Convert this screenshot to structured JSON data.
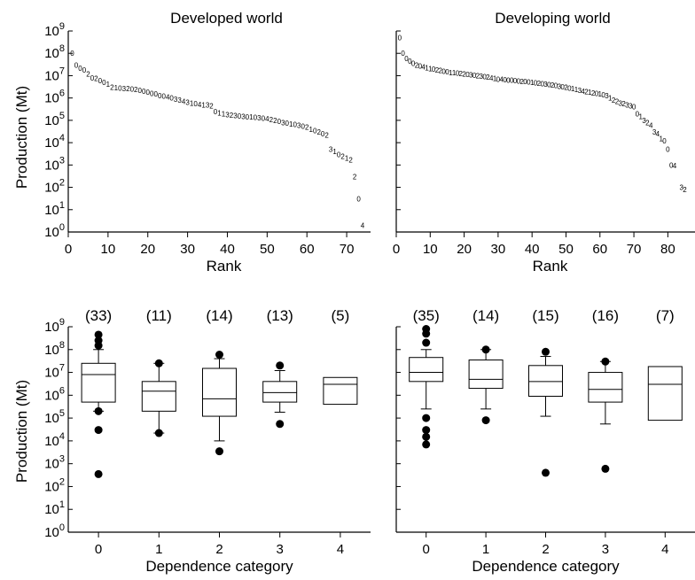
{
  "figure": {
    "ylabel": "Production (Mt)"
  },
  "chart_data": [
    {
      "type": "scatter",
      "title": "Developed world",
      "xlabel": "Rank",
      "ylabel": "Production (Mt)",
      "yscale": "log",
      "ylim": [
        1,
        1000000000
      ],
      "xlim": [
        0,
        76
      ],
      "xticks": [
        0,
        10,
        20,
        30,
        40,
        50,
        60,
        70
      ],
      "marker": "dependence category digit",
      "points": [
        {
          "x": 1,
          "y": 100000000,
          "label": "0"
        },
        {
          "x": 2,
          "y": 30000000,
          "label": "0"
        },
        {
          "x": 3,
          "y": 22000000,
          "label": "0"
        },
        {
          "x": 4,
          "y": 18000000,
          "label": "0"
        },
        {
          "x": 5,
          "y": 12000000,
          "label": "2"
        },
        {
          "x": 6,
          "y": 8000000,
          "label": "0"
        },
        {
          "x": 7,
          "y": 7500000,
          "label": "2"
        },
        {
          "x": 8,
          "y": 6000000,
          "label": "0"
        },
        {
          "x": 9,
          "y": 5000000,
          "label": "0"
        },
        {
          "x": 10,
          "y": 4200000,
          "label": "1"
        },
        {
          "x": 11,
          "y": 3000000,
          "label": "2"
        },
        {
          "x": 12,
          "y": 2900000,
          "label": "1"
        },
        {
          "x": 13,
          "y": 2800000,
          "label": "0"
        },
        {
          "x": 14,
          "y": 2700000,
          "label": "3"
        },
        {
          "x": 15,
          "y": 2600000,
          "label": "2"
        },
        {
          "x": 16,
          "y": 2500000,
          "label": "0"
        },
        {
          "x": 17,
          "y": 2400000,
          "label": "2"
        },
        {
          "x": 18,
          "y": 2200000,
          "label": "0"
        },
        {
          "x": 19,
          "y": 2000000,
          "label": "0"
        },
        {
          "x": 20,
          "y": 1800000,
          "label": "0"
        },
        {
          "x": 21,
          "y": 1600000,
          "label": "0"
        },
        {
          "x": 22,
          "y": 1500000,
          "label": "0"
        },
        {
          "x": 23,
          "y": 1300000,
          "label": "0"
        },
        {
          "x": 24,
          "y": 1200000,
          "label": "0"
        },
        {
          "x": 25,
          "y": 1100000,
          "label": "4"
        },
        {
          "x": 26,
          "y": 1000000,
          "label": "0"
        },
        {
          "x": 27,
          "y": 900000,
          "label": "3"
        },
        {
          "x": 28,
          "y": 800000,
          "label": "3"
        },
        {
          "x": 29,
          "y": 700000,
          "label": "4"
        },
        {
          "x": 30,
          "y": 650000,
          "label": "3"
        },
        {
          "x": 31,
          "y": 600000,
          "label": "1"
        },
        {
          "x": 32,
          "y": 560000,
          "label": "0"
        },
        {
          "x": 33,
          "y": 520000,
          "label": "4"
        },
        {
          "x": 34,
          "y": 500000,
          "label": "1"
        },
        {
          "x": 35,
          "y": 480000,
          "label": "3"
        },
        {
          "x": 36,
          "y": 450000,
          "label": "2"
        },
        {
          "x": 37,
          "y": 250000,
          "label": "0"
        },
        {
          "x": 38,
          "y": 220000,
          "label": "1"
        },
        {
          "x": 39,
          "y": 200000,
          "label": "1"
        },
        {
          "x": 40,
          "y": 180000,
          "label": "3"
        },
        {
          "x": 41,
          "y": 170000,
          "label": "2"
        },
        {
          "x": 42,
          "y": 160000,
          "label": "3"
        },
        {
          "x": 43,
          "y": 155000,
          "label": "0"
        },
        {
          "x": 44,
          "y": 150000,
          "label": "3"
        },
        {
          "x": 45,
          "y": 145000,
          "label": "0"
        },
        {
          "x": 46,
          "y": 140000,
          "label": "1"
        },
        {
          "x": 47,
          "y": 135000,
          "label": "0"
        },
        {
          "x": 48,
          "y": 130000,
          "label": "3"
        },
        {
          "x": 49,
          "y": 125000,
          "label": "0"
        },
        {
          "x": 50,
          "y": 120000,
          "label": "4"
        },
        {
          "x": 51,
          "y": 110000,
          "label": "2"
        },
        {
          "x": 52,
          "y": 100000,
          "label": "2"
        },
        {
          "x": 53,
          "y": 90000,
          "label": "0"
        },
        {
          "x": 54,
          "y": 80000,
          "label": "3"
        },
        {
          "x": 55,
          "y": 75000,
          "label": "0"
        },
        {
          "x": 56,
          "y": 70000,
          "label": "1"
        },
        {
          "x": 57,
          "y": 65000,
          "label": "0"
        },
        {
          "x": 58,
          "y": 60000,
          "label": "3"
        },
        {
          "x": 59,
          "y": 55000,
          "label": "0"
        },
        {
          "x": 60,
          "y": 50000,
          "label": "2"
        },
        {
          "x": 61,
          "y": 40000,
          "label": "1"
        },
        {
          "x": 62,
          "y": 35000,
          "label": "0"
        },
        {
          "x": 63,
          "y": 30000,
          "label": "2"
        },
        {
          "x": 64,
          "y": 25000,
          "label": "0"
        },
        {
          "x": 65,
          "y": 22000,
          "label": "2"
        },
        {
          "x": 66,
          "y": 5000,
          "label": "3"
        },
        {
          "x": 67,
          "y": 4000,
          "label": "1"
        },
        {
          "x": 68,
          "y": 3000,
          "label": "0"
        },
        {
          "x": 69,
          "y": 2500,
          "label": "2"
        },
        {
          "x": 70,
          "y": 2000,
          "label": "1"
        },
        {
          "x": 71,
          "y": 1700,
          "label": "2"
        },
        {
          "x": 72,
          "y": 300,
          "label": "2"
        },
        {
          "x": 73,
          "y": 30,
          "label": "0"
        },
        {
          "x": 74,
          "y": 2,
          "label": "4"
        }
      ]
    },
    {
      "type": "scatter",
      "title": "Developing world",
      "xlabel": "Rank",
      "ylabel": "Production (Mt)",
      "yscale": "log",
      "ylim": [
        1,
        1000000000
      ],
      "xlim": [
        0,
        88
      ],
      "xticks": [
        0,
        10,
        20,
        30,
        40,
        50,
        60,
        70,
        80
      ],
      "marker": "dependence category digit",
      "points": [
        {
          "x": 1,
          "y": 500000000,
          "label": "0"
        },
        {
          "x": 2,
          "y": 100000000,
          "label": "0"
        },
        {
          "x": 3,
          "y": 60000000,
          "label": "0"
        },
        {
          "x": 4,
          "y": 45000000,
          "label": "0"
        },
        {
          "x": 5,
          "y": 35000000,
          "label": "0"
        },
        {
          "x": 6,
          "y": 30000000,
          "label": "2"
        },
        {
          "x": 7,
          "y": 27000000,
          "label": "0"
        },
        {
          "x": 8,
          "y": 25000000,
          "label": "4"
        },
        {
          "x": 9,
          "y": 23000000,
          "label": "1"
        },
        {
          "x": 10,
          "y": 21000000,
          "label": "1"
        },
        {
          "x": 11,
          "y": 20000000,
          "label": "0"
        },
        {
          "x": 12,
          "y": 18000000,
          "label": "2"
        },
        {
          "x": 13,
          "y": 17000000,
          "label": "2"
        },
        {
          "x": 14,
          "y": 16000000,
          "label": "0"
        },
        {
          "x": 15,
          "y": 15000000,
          "label": "0"
        },
        {
          "x": 16,
          "y": 14000000,
          "label": "1"
        },
        {
          "x": 17,
          "y": 13500000,
          "label": "1"
        },
        {
          "x": 18,
          "y": 13000000,
          "label": "0"
        },
        {
          "x": 19,
          "y": 12500000,
          "label": "2"
        },
        {
          "x": 20,
          "y": 12000000,
          "label": "2"
        },
        {
          "x": 21,
          "y": 11500000,
          "label": "0"
        },
        {
          "x": 22,
          "y": 11000000,
          "label": "3"
        },
        {
          "x": 23,
          "y": 10500000,
          "label": "0"
        },
        {
          "x": 24,
          "y": 10000000,
          "label": "2"
        },
        {
          "x": 25,
          "y": 9500000,
          "label": "3"
        },
        {
          "x": 26,
          "y": 9000000,
          "label": "0"
        },
        {
          "x": 27,
          "y": 8500000,
          "label": "2"
        },
        {
          "x": 28,
          "y": 8000000,
          "label": "4"
        },
        {
          "x": 29,
          "y": 7500000,
          "label": "1"
        },
        {
          "x": 30,
          "y": 7000000,
          "label": "0"
        },
        {
          "x": 31,
          "y": 6800000,
          "label": "4"
        },
        {
          "x": 32,
          "y": 6600000,
          "label": "0"
        },
        {
          "x": 33,
          "y": 6400000,
          "label": "0"
        },
        {
          "x": 34,
          "y": 6200000,
          "label": "0"
        },
        {
          "x": 35,
          "y": 6000000,
          "label": "0"
        },
        {
          "x": 36,
          "y": 5800000,
          "label": "0"
        },
        {
          "x": 37,
          "y": 5600000,
          "label": "2"
        },
        {
          "x": 38,
          "y": 5400000,
          "label": "0"
        },
        {
          "x": 39,
          "y": 5200000,
          "label": "0"
        },
        {
          "x": 40,
          "y": 5000000,
          "label": "1"
        },
        {
          "x": 41,
          "y": 4800000,
          "label": "0"
        },
        {
          "x": 42,
          "y": 4600000,
          "label": "2"
        },
        {
          "x": 43,
          "y": 4400000,
          "label": "0"
        },
        {
          "x": 44,
          "y": 4200000,
          "label": "3"
        },
        {
          "x": 45,
          "y": 4000000,
          "label": "0"
        },
        {
          "x": 46,
          "y": 3800000,
          "label": "2"
        },
        {
          "x": 47,
          "y": 3600000,
          "label": "0"
        },
        {
          "x": 48,
          "y": 3400000,
          "label": "3"
        },
        {
          "x": 49,
          "y": 3200000,
          "label": "0"
        },
        {
          "x": 50,
          "y": 3000000,
          "label": "2"
        },
        {
          "x": 51,
          "y": 2800000,
          "label": "0"
        },
        {
          "x": 52,
          "y": 2600000,
          "label": "1"
        },
        {
          "x": 53,
          "y": 2400000,
          "label": "1"
        },
        {
          "x": 54,
          "y": 2200000,
          "label": "3"
        },
        {
          "x": 55,
          "y": 2000000,
          "label": "4"
        },
        {
          "x": 56,
          "y": 1900000,
          "label": "2"
        },
        {
          "x": 57,
          "y": 1800000,
          "label": "1"
        },
        {
          "x": 58,
          "y": 1700000,
          "label": "2"
        },
        {
          "x": 59,
          "y": 1600000,
          "label": "0"
        },
        {
          "x": 60,
          "y": 1500000,
          "label": "1"
        },
        {
          "x": 61,
          "y": 1400000,
          "label": "0"
        },
        {
          "x": 62,
          "y": 1300000,
          "label": "3"
        },
        {
          "x": 63,
          "y": 1000000,
          "label": "1"
        },
        {
          "x": 64,
          "y": 800000,
          "label": "2"
        },
        {
          "x": 65,
          "y": 700000,
          "label": "2"
        },
        {
          "x": 66,
          "y": 600000,
          "label": "3"
        },
        {
          "x": 67,
          "y": 550000,
          "label": "2"
        },
        {
          "x": 68,
          "y": 500000,
          "label": "3"
        },
        {
          "x": 69,
          "y": 450000,
          "label": "3"
        },
        {
          "x": 70,
          "y": 400000,
          "label": "0"
        },
        {
          "x": 71,
          "y": 200000,
          "label": "0"
        },
        {
          "x": 72,
          "y": 150000,
          "label": "1"
        },
        {
          "x": 73,
          "y": 100000,
          "label": "3"
        },
        {
          "x": 74,
          "y": 80000,
          "label": "2"
        },
        {
          "x": 75,
          "y": 60000,
          "label": "4"
        },
        {
          "x": 76,
          "y": 30000,
          "label": "3"
        },
        {
          "x": 77,
          "y": 25000,
          "label": "4"
        },
        {
          "x": 78,
          "y": 15000,
          "label": "1"
        },
        {
          "x": 79,
          "y": 12000,
          "label": "0"
        },
        {
          "x": 80,
          "y": 5000,
          "label": "0"
        },
        {
          "x": 81,
          "y": 1000,
          "label": "0"
        },
        {
          "x": 82,
          "y": 950,
          "label": "4"
        },
        {
          "x": 84,
          "y": 100,
          "label": "3"
        },
        {
          "x": 85,
          "y": 80,
          "label": "2"
        }
      ]
    },
    {
      "type": "box",
      "xlabel": "Dependence category",
      "ylabel": "Production (Mt)",
      "yscale": "log",
      "ylim": [
        1,
        1000000000
      ],
      "categories": [
        "0",
        "1",
        "2",
        "3",
        "4"
      ],
      "counts": [
        "(33)",
        "(11)",
        "(14)",
        "(13)",
        "(5)"
      ],
      "boxes": [
        {
          "q1": 500000,
          "median": 8000000,
          "q3": 25000000,
          "whisker_low": 200000,
          "whisker_high": 100000000,
          "outliers": [
            200000,
            30000,
            350,
            150000000,
            250000000,
            450000000
          ]
        },
        {
          "q1": 200000,
          "median": 1500000,
          "q3": 4000000,
          "whisker_low": 22000,
          "whisker_high": 25000000,
          "outliers": [
            22000,
            25000000
          ]
        },
        {
          "q1": 120000,
          "median": 700000,
          "q3": 15000000,
          "whisker_low": 10000,
          "whisker_high": 40000000,
          "outliers": [
            3500,
            60000000
          ]
        },
        {
          "q1": 500000,
          "median": 1300000,
          "q3": 4000000,
          "whisker_low": 180000,
          "whisker_high": 12000000,
          "outliers": [
            55000,
            20000000
          ]
        },
        {
          "q1": 400000,
          "median": 3000000,
          "q3": 6000000,
          "whisker_low": null,
          "whisker_high": null,
          "outliers": []
        }
      ]
    },
    {
      "type": "box",
      "xlabel": "Dependence category",
      "ylabel": "Production (Mt)",
      "yscale": "log",
      "ylim": [
        1,
        1000000000
      ],
      "categories": [
        "0",
        "1",
        "2",
        "3",
        "4"
      ],
      "counts": [
        "(35)",
        "(14)",
        "(15)",
        "(16)",
        "(7)"
      ],
      "boxes": [
        {
          "q1": 4000000,
          "median": 10000000,
          "q3": 45000000,
          "whisker_low": 250000,
          "whisker_high": 100000000,
          "outliers": [
            100000,
            30000,
            15000,
            7000,
            200000000,
            500000000,
            800000000
          ]
        },
        {
          "q1": 2000000,
          "median": 5000000,
          "q3": 35000000,
          "whisker_low": 250000,
          "whisker_high": 100000000,
          "outliers": [
            80000,
            100000000
          ]
        },
        {
          "q1": 900000,
          "median": 4000000,
          "q3": 20000000,
          "whisker_low": 120000,
          "whisker_high": 50000000,
          "outliers": [
            400,
            80000000
          ]
        },
        {
          "q1": 500000,
          "median": 1800000,
          "q3": 10000000,
          "whisker_low": 55000,
          "whisker_high": 30000000,
          "outliers": [
            600,
            30000000
          ]
        },
        {
          "q1": 80000,
          "median": 3000000,
          "q3": 18000000,
          "whisker_low": null,
          "whisker_high": null,
          "outliers": []
        }
      ]
    }
  ]
}
